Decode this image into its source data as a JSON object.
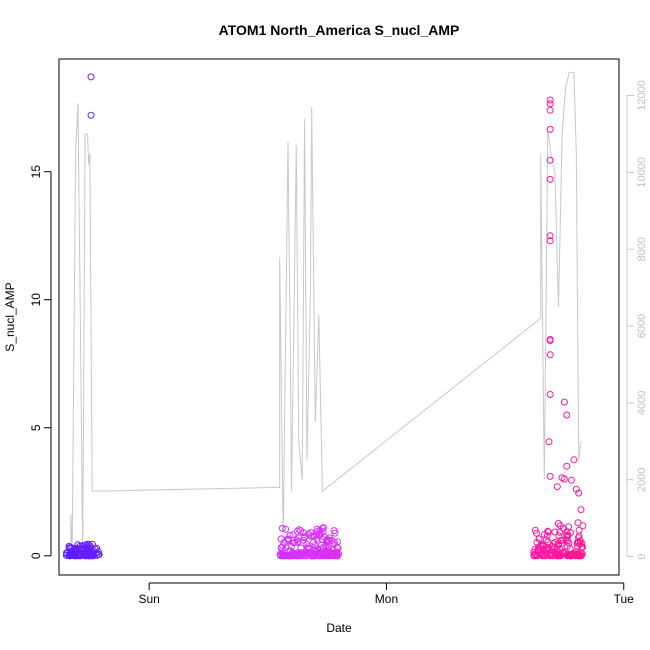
{
  "chart_data": {
    "type": "scatter",
    "title": "ATOM1 North_America S_nucl_AMP",
    "xlabel": "Date",
    "ylabel": "S_nucl_AMP",
    "y_ticks": [
      0,
      5,
      10,
      15
    ],
    "y_lim": [
      -0.75,
      19.4
    ],
    "x_ticks": [
      "Sun",
      "Mon",
      "Tue"
    ],
    "x_lim": [
      -0.38,
      1.98
    ],
    "secondary_y": {
      "label": "",
      "ticks": [
        0,
        2000,
        4000,
        6000,
        8000,
        10000,
        12000
      ],
      "lim": [
        -480,
        12950
      ],
      "color": "#c8c8c8"
    },
    "grid": false,
    "legend": "none",
    "colors": {
      "start": "#5a1cff",
      "mid": "#d830ff",
      "end": "#ff1493",
      "line": "#c8c8c8",
      "axis": "#000000"
    },
    "series": [
      {
        "type": "points",
        "clusters": [
          {
            "x_range": [
              -0.35,
              -0.21
            ],
            "cluster_max": 0.45,
            "outliers": [
              [
                -0.245,
                18.7
              ],
              [
                -0.245,
                17.2
              ],
              [
                -0.255,
                0.45
              ],
              [
                -0.25,
                0.4
              ],
              [
                -0.26,
                0.35
              ],
              [
                -0.24,
                0.3
              ]
            ]
          },
          {
            "x_range": [
              0.55,
              0.8
            ],
            "cluster_max": 1.1,
            "outliers": [
              [
                0.735,
                1.1
              ],
              [
                0.72,
                1.0
              ],
              [
                0.71,
                0.95
              ],
              [
                0.68,
                0.9
              ],
              [
                0.76,
                0.7
              ],
              [
                0.77,
                0.6
              ]
            ]
          },
          {
            "x_range": [
              1.62,
              1.83
            ],
            "cluster_max": 1.3,
            "outliers": [
              [
                1.69,
                17.8
              ],
              [
                1.69,
                17.65
              ],
              [
                1.69,
                17.4
              ],
              [
                1.69,
                16.65
              ],
              [
                1.69,
                15.45
              ],
              [
                1.69,
                14.7
              ],
              [
                1.69,
                12.5
              ],
              [
                1.69,
                12.3
              ],
              [
                1.69,
                8.45
              ],
              [
                1.69,
                8.4
              ],
              [
                1.69,
                7.85
              ],
              [
                1.69,
                6.3
              ],
              [
                1.685,
                4.45
              ],
              [
                1.69,
                3.1
              ],
              [
                1.75,
                6.0
              ],
              [
                1.76,
                5.5
              ],
              [
                1.79,
                3.75
              ],
              [
                1.76,
                3.5
              ],
              [
                1.74,
                3.05
              ],
              [
                1.75,
                3.0
              ],
              [
                1.72,
                2.7
              ],
              [
                1.78,
                2.95
              ],
              [
                1.8,
                2.6
              ],
              [
                1.81,
                2.45
              ],
              [
                1.82,
                1.8
              ]
            ]
          }
        ]
      },
      {
        "type": "line",
        "axis": "secondary",
        "points": [
          [
            -0.33,
            0
          ],
          [
            -0.33,
            1100
          ],
          [
            -0.325,
            0
          ],
          [
            -0.31,
            10500
          ],
          [
            -0.3,
            11800
          ],
          [
            -0.29,
            6000
          ],
          [
            -0.28,
            0
          ],
          [
            -0.27,
            11000
          ],
          [
            -0.26,
            11000
          ],
          [
            -0.255,
            10200
          ],
          [
            -0.25,
            10500
          ],
          [
            -0.24,
            1700
          ],
          [
            0.55,
            1800
          ],
          [
            0.55,
            7800
          ],
          [
            0.565,
            500
          ],
          [
            0.585,
            10800
          ],
          [
            0.595,
            5000
          ],
          [
            0.6,
            1700
          ],
          [
            0.62,
            10700
          ],
          [
            0.63,
            3000
          ],
          [
            0.645,
            2000
          ],
          [
            0.655,
            11400
          ],
          [
            0.665,
            2500
          ],
          [
            0.68,
            7000
          ],
          [
            0.685,
            11700
          ],
          [
            0.7,
            3500
          ],
          [
            0.715,
            6300
          ],
          [
            0.73,
            1700
          ],
          [
            1.65,
            6200
          ],
          [
            1.65,
            10500
          ],
          [
            1.665,
            2000
          ],
          [
            1.68,
            11100
          ],
          [
            1.695,
            10400
          ],
          [
            1.71,
            10000
          ],
          [
            1.725,
            6500
          ],
          [
            1.74,
            11000
          ],
          [
            1.755,
            12200
          ],
          [
            1.77,
            12600
          ],
          [
            1.79,
            12600
          ],
          [
            1.8,
            10500
          ],
          [
            1.81,
            2500
          ],
          [
            1.82,
            3000
          ]
        ]
      }
    ]
  }
}
